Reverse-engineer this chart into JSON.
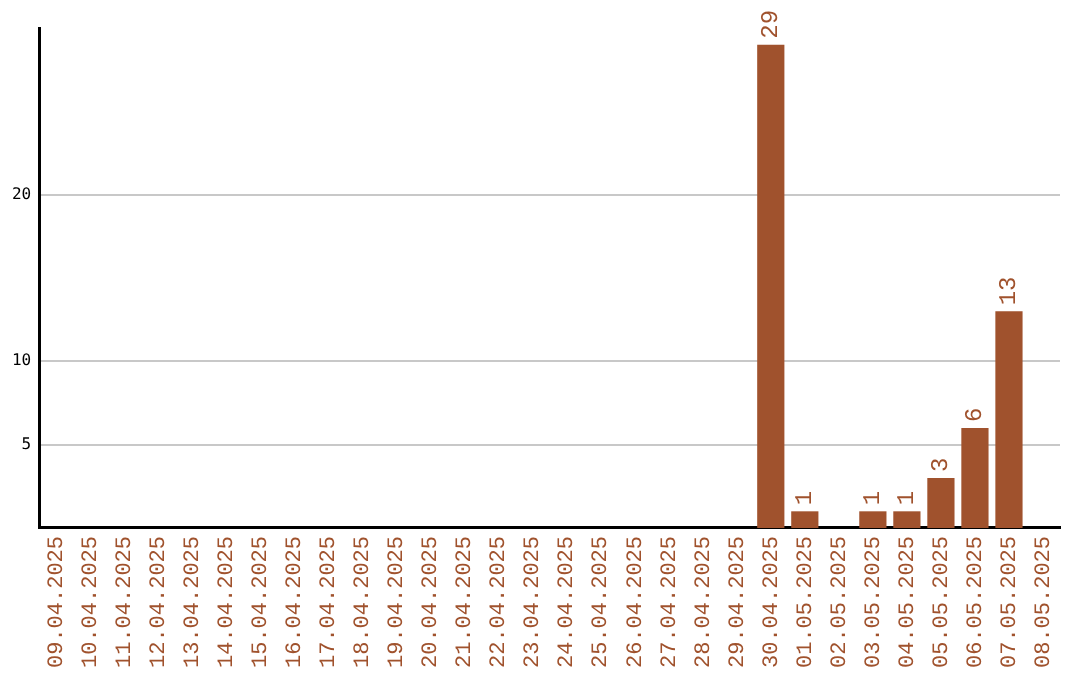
{
  "chart_data": {
    "type": "bar",
    "categories": [
      "09.04.2025",
      "10.04.2025",
      "11.04.2025",
      "12.04.2025",
      "13.04.2025",
      "14.04.2025",
      "15.04.2025",
      "16.04.2025",
      "17.04.2025",
      "18.04.2025",
      "19.04.2025",
      "20.04.2025",
      "21.04.2025",
      "22.04.2025",
      "23.04.2025",
      "24.04.2025",
      "25.04.2025",
      "26.04.2025",
      "27.04.2025",
      "28.04.2025",
      "29.04.2025",
      "30.04.2025",
      "01.05.2025",
      "02.05.2025",
      "03.05.2025",
      "04.05.2025",
      "05.05.2025",
      "06.05.2025",
      "07.05.2025",
      "08.05.2025"
    ],
    "values": [
      0,
      0,
      0,
      0,
      0,
      0,
      0,
      0,
      0,
      0,
      0,
      0,
      0,
      0,
      0,
      0,
      0,
      0,
      0,
      0,
      0,
      29,
      1,
      0,
      1,
      1,
      3,
      6,
      13,
      0
    ],
    "value_labels": [
      null,
      null,
      null,
      null,
      null,
      null,
      null,
      null,
      null,
      null,
      null,
      null,
      null,
      null,
      null,
      null,
      null,
      null,
      null,
      null,
      null,
      "29",
      "1",
      null,
      "1",
      "1",
      "3",
      "6",
      "13",
      null
    ],
    "color": "#a0522d",
    "ylim": [
      0,
      30
    ],
    "yticks": [
      5,
      10,
      20
    ],
    "grid": "y",
    "legend": false
  }
}
